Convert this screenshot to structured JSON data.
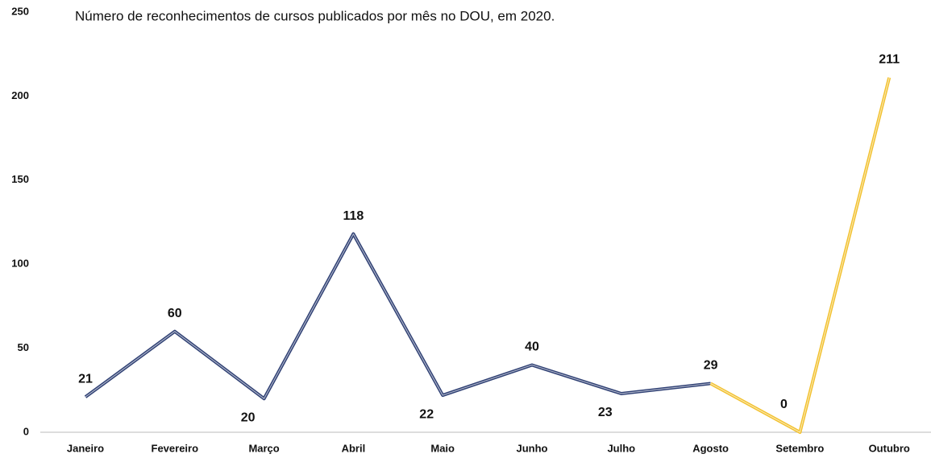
{
  "chart_data": {
    "type": "line",
    "title": "Número de reconhecimentos de cursos publicados por mês no DOU, em 2020.",
    "categories": [
      "Janeiro",
      "Fevereiro",
      "Março",
      "Abril",
      "Maio",
      "Junho",
      "Julho",
      "Agosto",
      "Setembro",
      "Outubro"
    ],
    "series": [
      {
        "color": "#2e3f73",
        "values": [
          21,
          60,
          20,
          118,
          22,
          40,
          23,
          29,
          null,
          null
        ]
      },
      {
        "color": "#f2c12e",
        "values": [
          null,
          null,
          null,
          null,
          null,
          null,
          null,
          29,
          0,
          211
        ]
      }
    ],
    "ylim": [
      0,
      250
    ],
    "yticks": [
      0,
      50,
      100,
      150,
      200,
      250
    ],
    "grid": false
  }
}
